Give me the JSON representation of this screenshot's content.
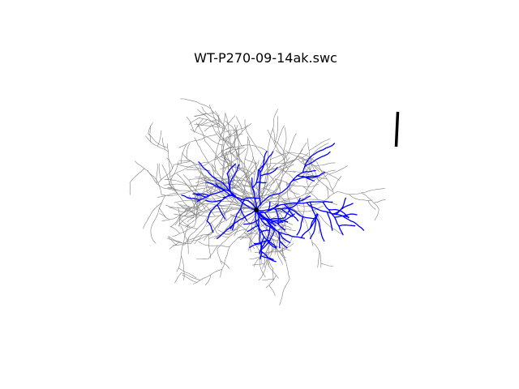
{
  "title": "WT-P270-09-14ak.swc",
  "colors": {
    "background": "#ffffff",
    "dendrite": "#808080",
    "axon": "#0000ff",
    "soma": "#000000",
    "scale_bar": "#000000"
  }
}
